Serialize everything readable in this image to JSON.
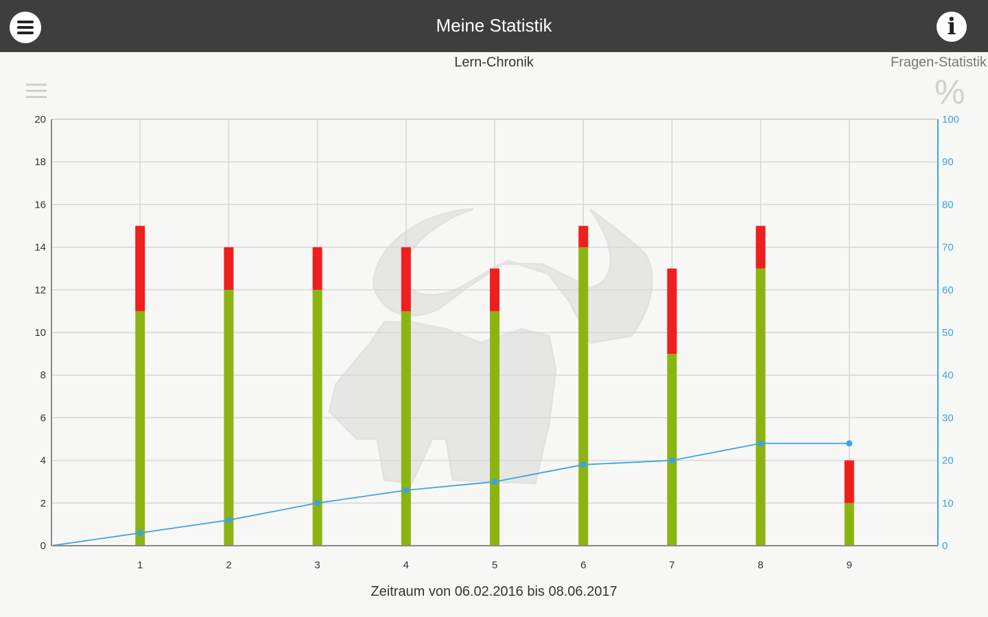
{
  "header": {
    "title": "Meine Statistik",
    "menu_icon": "menu-icon",
    "info_icon": "info-icon"
  },
  "tabs": {
    "left": "Lern-Chronik",
    "right": "Fragen-Statistik"
  },
  "icons": {
    "list": "list-icon",
    "percent": "%"
  },
  "chart_data": {
    "type": "bar",
    "stacked": true,
    "categories": [
      "1",
      "2",
      "3",
      "4",
      "5",
      "6",
      "7",
      "8",
      "9"
    ],
    "series": [
      {
        "values": [
          11,
          12,
          12,
          11,
          11,
          14,
          9,
          13,
          2
        ],
        "color": "#8cb411"
      },
      {
        "values": [
          4,
          2,
          2,
          3,
          2,
          1,
          4,
          2,
          2
        ],
        "color": "#f01e1e"
      }
    ],
    "line_series": {
      "values": [
        3,
        6,
        10,
        13,
        15,
        19,
        20,
        24,
        24
      ],
      "color": "#3aa3e3",
      "axis": "right"
    },
    "ylim_left": [
      0,
      20
    ],
    "yticks_left": [
      0,
      2,
      4,
      6,
      8,
      10,
      12,
      14,
      16,
      18,
      20
    ],
    "ylim_right": [
      0,
      100
    ],
    "yticks_right": [
      0,
      10,
      20,
      30,
      40,
      50,
      60,
      70,
      80,
      90,
      100
    ],
    "xlabel": "Zeitraum von 06.02.2016 bis 08.06.2017",
    "grid": true
  }
}
